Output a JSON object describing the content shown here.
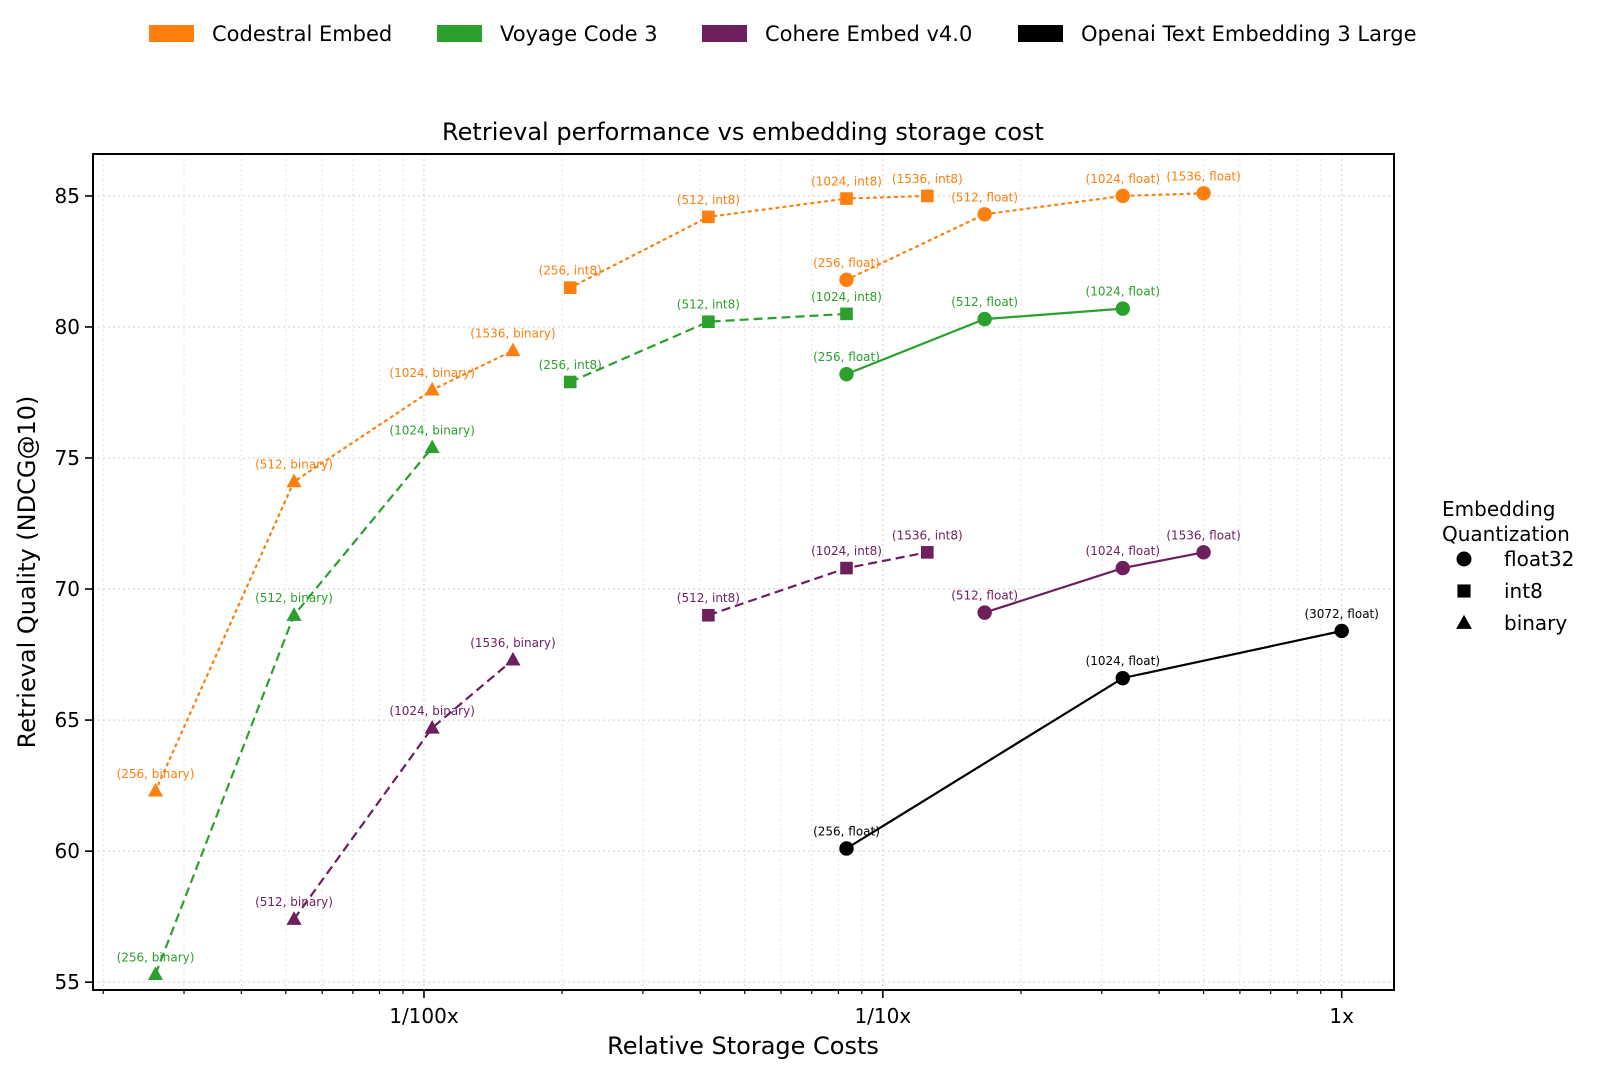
{
  "chart_data": {
    "type": "line",
    "title": "Retrieval performance vs embedding storage cost",
    "xlabel": "Relative Storage Costs",
    "ylabel": "Retrieval Quality (NDCG@10)",
    "x_scale": "log",
    "xlim": [
      0.0019,
      1.3
    ],
    "ylim": [
      54.7,
      86.6
    ],
    "x_ticks": [
      {
        "value": 0.01,
        "label": "1/100x"
      },
      {
        "value": 0.1,
        "label": "1/10x"
      },
      {
        "value": 1,
        "label": "1x"
      }
    ],
    "y_ticks": [
      55,
      60,
      65,
      70,
      75,
      80,
      85
    ],
    "grid": true,
    "models": [
      {
        "name": "Codestral Embed",
        "color": "#ff7f0e"
      },
      {
        "name": "Voyage Code 3",
        "color": "#2ca02c"
      },
      {
        "name": "Cohere Embed v4.0",
        "color": "#6d1f5e"
      },
      {
        "name": "Openai Text Embedding 3 Large",
        "color": "#000000"
      }
    ],
    "quantization_legend": {
      "title_lines": [
        "Embedding",
        "Quantization"
      ],
      "items": [
        {
          "label": "float32",
          "marker": "circle"
        },
        {
          "label": "int8",
          "marker": "square"
        },
        {
          "label": "binary",
          "marker": "triangle"
        }
      ]
    },
    "series": [
      {
        "model": "Codestral Embed",
        "quant": "binary",
        "marker": "triangle",
        "dash": "dotted",
        "points": [
          {
            "x": 0.0026,
            "y": 62.3,
            "label": "(256, binary)"
          },
          {
            "x": 0.00521,
            "y": 74.1,
            "label": "(512, binary)"
          },
          {
            "x": 0.01042,
            "y": 77.6,
            "label": "(1024, binary)"
          },
          {
            "x": 0.01563,
            "y": 79.1,
            "label": "(1536, binary)"
          }
        ]
      },
      {
        "model": "Codestral Embed",
        "quant": "int8",
        "marker": "square",
        "dash": "dotted",
        "points": [
          {
            "x": 0.02083,
            "y": 81.5,
            "label": "(256, int8)"
          },
          {
            "x": 0.04167,
            "y": 84.2,
            "label": "(512, int8)"
          },
          {
            "x": 0.08333,
            "y": 84.9,
            "label": "(1024, int8)"
          },
          {
            "x": 0.125,
            "y": 85.0,
            "label": "(1536, int8)"
          }
        ]
      },
      {
        "model": "Codestral Embed",
        "quant": "float",
        "marker": "circle",
        "dash": "dotted",
        "points": [
          {
            "x": 0.08333,
            "y": 81.8,
            "label": "(256, float)"
          },
          {
            "x": 0.16667,
            "y": 84.3,
            "label": "(512, float)"
          },
          {
            "x": 0.33333,
            "y": 85.0,
            "label": "(1024, float)"
          },
          {
            "x": 0.5,
            "y": 85.1,
            "label": "(1536, float)"
          }
        ]
      },
      {
        "model": "Voyage Code 3",
        "quant": "binary",
        "marker": "triangle",
        "dash": "dashed",
        "points": [
          {
            "x": 0.0026,
            "y": 55.3,
            "label": "(256, binary)"
          },
          {
            "x": 0.00521,
            "y": 69.0,
            "label": "(512, binary)"
          },
          {
            "x": 0.01042,
            "y": 75.4,
            "label": "(1024, binary)"
          }
        ]
      },
      {
        "model": "Voyage Code 3",
        "quant": "int8",
        "marker": "square",
        "dash": "dashed",
        "points": [
          {
            "x": 0.02083,
            "y": 77.9,
            "label": "(256, int8)"
          },
          {
            "x": 0.04167,
            "y": 80.2,
            "label": "(512, int8)"
          },
          {
            "x": 0.08333,
            "y": 80.5,
            "label": "(1024, int8)"
          }
        ]
      },
      {
        "model": "Voyage Code 3",
        "quant": "float",
        "marker": "circle",
        "dash": "solid",
        "points": [
          {
            "x": 0.08333,
            "y": 78.2,
            "label": "(256, float)"
          },
          {
            "x": 0.16667,
            "y": 80.3,
            "label": "(512, float)"
          },
          {
            "x": 0.33333,
            "y": 80.7,
            "label": "(1024, float)"
          }
        ]
      },
      {
        "model": "Cohere Embed v4.0",
        "quant": "binary",
        "marker": "triangle",
        "dash": "dashed",
        "points": [
          {
            "x": 0.00521,
            "y": 57.4,
            "label": "(512, binary)"
          },
          {
            "x": 0.01042,
            "y": 64.7,
            "label": "(1024, binary)"
          },
          {
            "x": 0.01563,
            "y": 67.3,
            "label": "(1536, binary)"
          }
        ]
      },
      {
        "model": "Cohere Embed v4.0",
        "quant": "int8",
        "marker": "square",
        "dash": "dashed",
        "points": [
          {
            "x": 0.04167,
            "y": 69.0,
            "label": "(512, int8)"
          },
          {
            "x": 0.08333,
            "y": 70.8,
            "label": "(1024, int8)"
          },
          {
            "x": 0.125,
            "y": 71.4,
            "label": "(1536, int8)"
          }
        ]
      },
      {
        "model": "Cohere Embed v4.0",
        "quant": "float",
        "marker": "circle",
        "dash": "solid",
        "points": [
          {
            "x": 0.16667,
            "y": 69.1,
            "label": "(512, float)"
          },
          {
            "x": 0.33333,
            "y": 70.8,
            "label": "(1024, float)"
          },
          {
            "x": 0.5,
            "y": 71.4,
            "label": "(1536, float)"
          }
        ]
      },
      {
        "model": "Openai Text Embedding 3 Large",
        "quant": "float",
        "marker": "circle",
        "dash": "solid",
        "points": [
          {
            "x": 0.08333,
            "y": 60.1,
            "label": "(256, float)"
          },
          {
            "x": 0.33333,
            "y": 66.6,
            "label": "(1024, float)"
          },
          {
            "x": 1.0,
            "y": 68.4,
            "label": "(3072, float)"
          }
        ]
      }
    ]
  }
}
